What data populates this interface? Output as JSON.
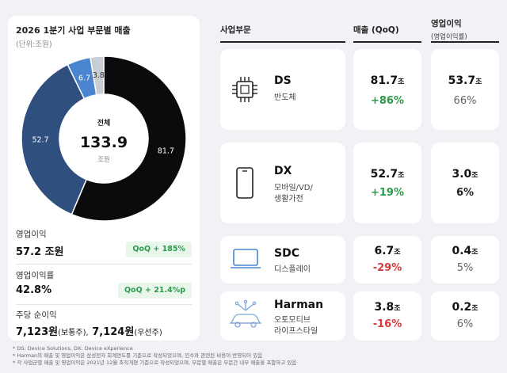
{
  "left": {
    "title": "2026 1분기 사업 부문별 매출",
    "unit": "(단위:조원)",
    "center_label": "전체",
    "center_value": "133.9",
    "center_unit": "조원",
    "operating_profit_label": "영업이익",
    "operating_profit_value": "57.2 조원",
    "operating_profit_chip": "QoQ + 185%",
    "operating_margin_label": "영업이익률",
    "operating_margin_value": "42.8%",
    "operating_margin_chip": "QoQ + 21.4%p",
    "eps_label": "주당 순이익",
    "eps_common": "7,123원",
    "eps_common_suffix": "(보통주),",
    "eps_pref": "7,124원",
    "eps_pref_suffix": "(우선주)"
  },
  "table": {
    "col_segment": "사업부문",
    "col_sales": "매출 (QoQ)",
    "col_op": "영업이익",
    "col_op_sub": "(영업이익률)",
    "rows": [
      {
        "name": "DS",
        "desc": "반도체",
        "sales": "81.7",
        "sales_unit": "조",
        "sales_qoq": "+86%",
        "op": "53.7",
        "op_unit": "조",
        "margin": "66%",
        "icon": "chip-icon"
      },
      {
        "name": "DX",
        "desc": "모바일/VD/\n생활가전",
        "sales": "52.7",
        "sales_unit": "조",
        "sales_qoq": "+19%",
        "op": "3.0",
        "op_unit": "조",
        "margin": "6%",
        "icon": "smartphone-icon"
      },
      {
        "name": "SDC",
        "desc": "디스플레이",
        "sales": "6.7",
        "sales_unit": "조",
        "sales_qoq": "-29%",
        "op": "0.4",
        "op_unit": "조",
        "margin": "5%",
        "icon": "display-icon"
      },
      {
        "name": "Harman",
        "desc": "오토모티브\n라이프스타일",
        "sales": "3.8",
        "sales_unit": "조",
        "sales_qoq": "-16%",
        "op": "0.2",
        "op_unit": "조",
        "margin": "6%",
        "icon": "connected-car-icon"
      }
    ]
  },
  "notes": [
    "* DS: Device Solutions, DX: Device eXperience",
    "* Harman의 매출 및 영업이익은 삼성전자 회계연도를 기준으로 작성되었으며, 인수와 관련된 비용이 반영되어 있음",
    "* 각 사업군별 매출 및 영업이익은 2021년 12월 조직개편 기준으로 작성되었으며, 부문별 매출은 부문간 내부 매출을 포함하고 있음"
  ],
  "chart_data": {
    "type": "pie",
    "title": "2026 1분기 사업 부문별 매출",
    "unit": "(단위:조원)",
    "donut": true,
    "categories": [
      "DS",
      "DX",
      "SDC",
      "Harman"
    ],
    "values": [
      81.7,
      52.7,
      6.7,
      3.8
    ],
    "total": 133.9,
    "colors": [
      "#0b0b0d",
      "#2f4f7f",
      "#4a86cf",
      "#c9cdd4"
    ]
  }
}
